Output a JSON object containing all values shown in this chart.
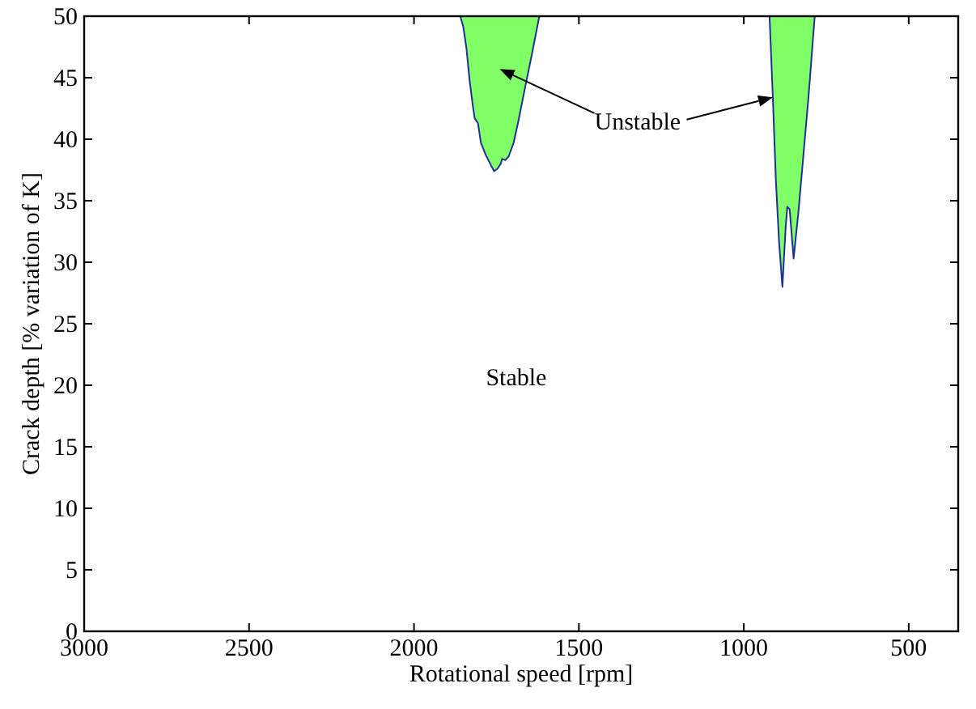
{
  "chart_data": {
    "type": "area",
    "xlabel": "Rotational speed [rpm]",
    "ylabel": "Crack depth [% variation of K]",
    "xlim": [
      3000,
      350
    ],
    "xticks": [
      3000,
      2500,
      2000,
      1500,
      1000,
      500
    ],
    "ylim": [
      0,
      50
    ],
    "yticks": [
      0,
      5,
      10,
      15,
      20,
      25,
      30,
      35,
      40,
      45,
      50
    ],
    "grid": false,
    "series": [
      {
        "color": "#80ff66",
        "x": [
          1860,
          1851,
          1841,
          1831,
          1821,
          1816,
          1806,
          1797,
          1782,
          1767,
          1757,
          1747,
          1737,
          1733,
          1723,
          1713,
          1698,
          1684,
          1664,
          1644,
          1620
        ],
        "values": [
          50,
          49.2,
          47.4,
          44.7,
          42.6,
          41.7,
          41.3,
          39.7,
          38.7,
          37.9,
          37.4,
          37.6,
          38,
          38.4,
          38.3,
          38.6,
          39.7,
          41.4,
          44.1,
          46.7,
          50
        ]
      },
      {
        "color": "#80ff66",
        "x": [
          922,
          912,
          903,
          893,
          883,
          873,
          868,
          861,
          849,
          834,
          819,
          804,
          785
        ],
        "values": [
          50,
          43.4,
          36.8,
          31.6,
          28,
          32.9,
          34.5,
          34.3,
          30.3,
          34.2,
          38.8,
          43.4,
          50
        ]
      }
    ],
    "annotations": [
      {
        "text": "Unstable",
        "x": 912,
        "y": 43.4
      },
      "Stable"
    ]
  }
}
